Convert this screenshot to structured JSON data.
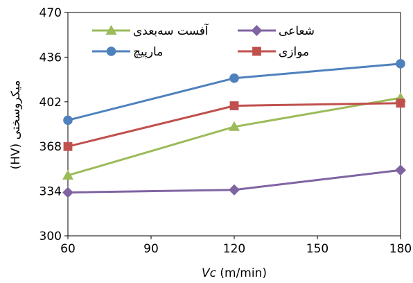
{
  "chart_data": {
    "type": "line",
    "title": "",
    "xlabel": "Vc (m/min)",
    "xlabel_italic_part": "Vc",
    "xlabel_rest": " (m/min)",
    "ylabel": "(HV) میکروسختی",
    "x_ticks": [
      60,
      90,
      120,
      150,
      180
    ],
    "y_ticks": [
      300,
      334,
      368,
      402,
      436,
      470
    ],
    "xlim": [
      60,
      180
    ],
    "ylim": [
      300,
      470
    ],
    "grid": false,
    "legend_position": "top",
    "series": [
      {
        "name": "آفست سه‌بعدی",
        "color": "#9BBB59",
        "marker": "triangle",
        "x": [
          60,
          120,
          180
        ],
        "y": [
          346,
          383,
          405
        ]
      },
      {
        "name": "شعاعی",
        "color": "#8064A2",
        "marker": "diamond",
        "x": [
          60,
          120,
          180
        ],
        "y": [
          333,
          335,
          350
        ]
      },
      {
        "name": "مارپیچ",
        "color": "#4F81BD",
        "marker": "circle",
        "x": [
          60,
          120,
          180
        ],
        "y": [
          388,
          420,
          431
        ]
      },
      {
        "name": "موازی",
        "color": "#C0504D",
        "marker": "square",
        "x": [
          60,
          120,
          180
        ],
        "y": [
          368,
          399,
          401
        ]
      }
    ]
  }
}
